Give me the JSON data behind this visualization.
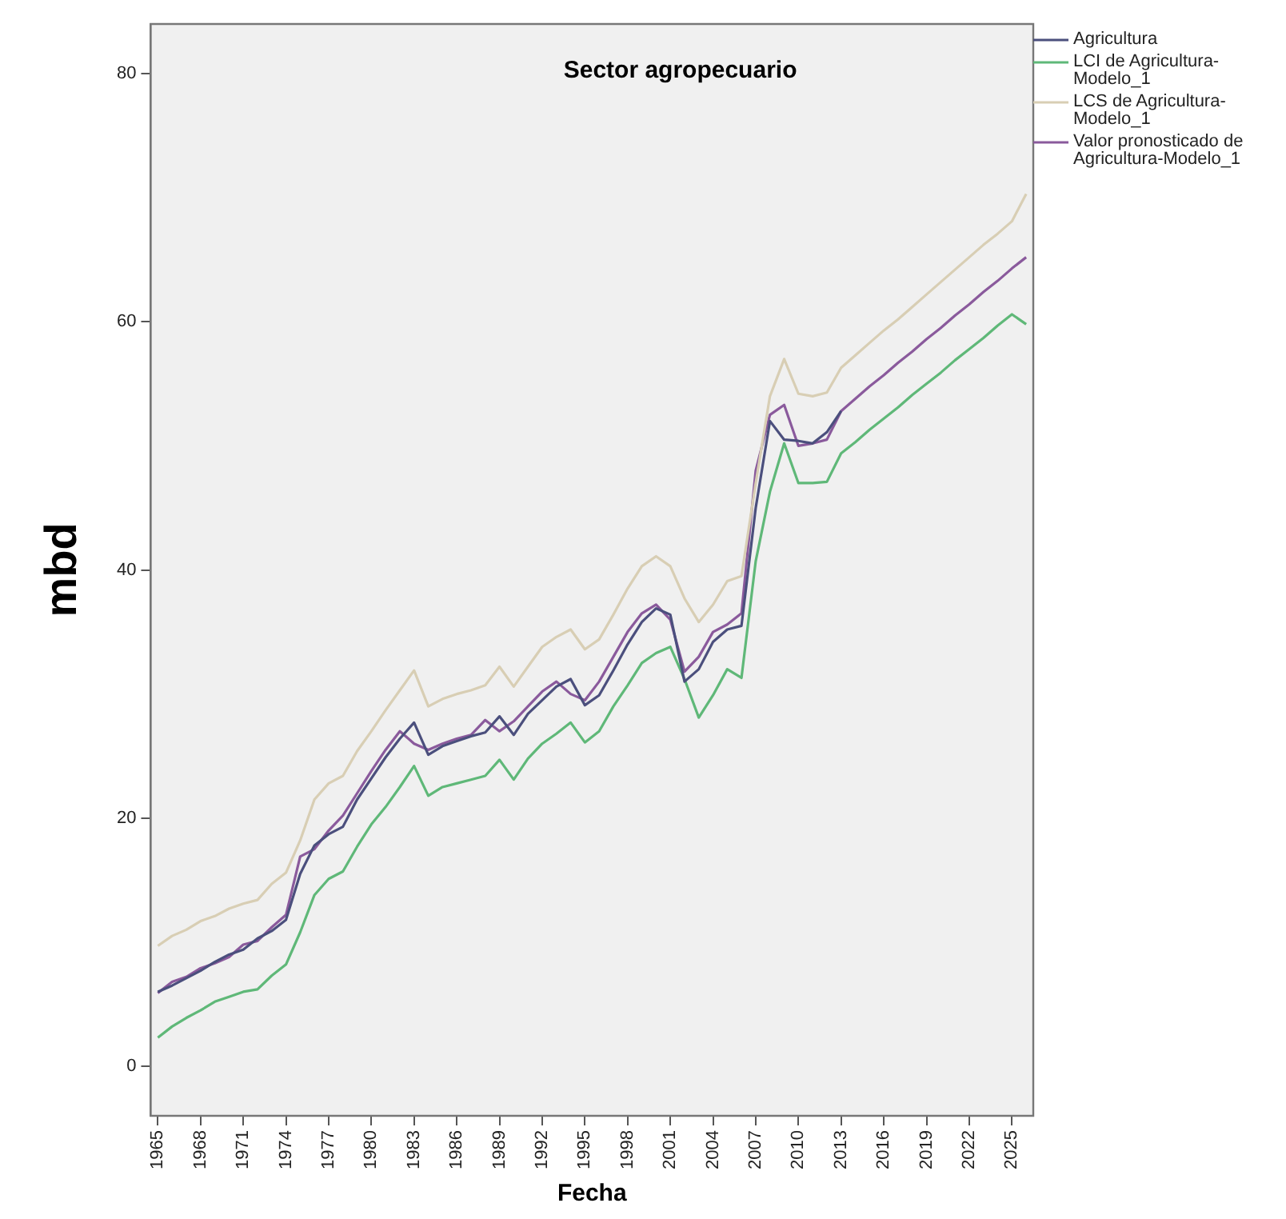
{
  "chart_data": {
    "type": "line",
    "title": "Sector agropecuario",
    "xlabel": "Fecha",
    "ylabel": "mbd",
    "categories": [
      "1965",
      null,
      null,
      "1968",
      null,
      null,
      "1971",
      null,
      null,
      "1974",
      null,
      null,
      "1977",
      null,
      null,
      "1980",
      null,
      null,
      "1983",
      null,
      null,
      "1986",
      null,
      null,
      "1989",
      null,
      null,
      "1992",
      null,
      null,
      "1995",
      null,
      null,
      "1998",
      null,
      null,
      "2001",
      null,
      null,
      "2004",
      null,
      null,
      "2007",
      null,
      null,
      "2010",
      null,
      null,
      "2013",
      null,
      null,
      "2016",
      null,
      null,
      "2019",
      null,
      null,
      "2022",
      null,
      null,
      "2025",
      null
    ],
    "ylim": [
      -4,
      84
    ],
    "yticks": [
      0,
      20,
      40,
      60,
      80
    ],
    "legend": "top right",
    "marker": "none",
    "line_style": "solid",
    "series": [
      {
        "name": "Agricultura",
        "color": "#4b4f7d",
        "values": [
          6.0,
          6.5,
          7.1,
          7.7,
          8.4,
          9.0,
          9.4,
          10.3,
          10.9,
          11.8,
          15.5,
          17.8,
          18.7,
          19.3,
          21.5,
          23.2,
          24.9,
          26.4,
          27.7,
          25.1,
          25.8,
          26.2,
          26.6,
          26.9,
          28.2,
          26.7,
          28.4,
          29.5,
          30.6,
          31.2,
          29.1,
          29.9,
          31.9,
          34.0,
          35.8,
          36.9,
          36.4,
          31.0,
          32.0,
          34.2,
          35.2,
          35.5,
          45.0,
          52.0,
          50.5,
          50.4,
          50.2,
          51.1,
          52.8,
          null,
          null,
          null,
          null,
          null,
          null,
          null,
          null,
          null,
          null,
          null,
          null,
          null
        ]
      },
      {
        "name": "LCI de Agricultura-Modelo_1",
        "color": "#5fb878",
        "values": [
          2.3,
          3.2,
          3.9,
          4.5,
          5.2,
          5.6,
          6.0,
          6.2,
          7.3,
          8.2,
          10.8,
          13.8,
          15.1,
          15.7,
          17.7,
          19.5,
          20.9,
          22.5,
          24.2,
          21.8,
          22.5,
          22.8,
          23.1,
          23.4,
          24.7,
          23.1,
          24.8,
          26.0,
          26.8,
          27.7,
          26.1,
          27.0,
          29.0,
          30.7,
          32.5,
          33.3,
          33.8,
          31.2,
          28.1,
          29.9,
          32.0,
          31.3,
          40.7,
          46.3,
          50.2,
          47.0,
          47.0,
          47.1,
          49.4,
          50.3,
          51.3,
          52.2,
          53.1,
          54.1,
          55.0,
          55.9,
          56.9,
          57.8,
          58.7,
          59.7,
          60.6,
          59.8
        ]
      },
      {
        "name": "LCS de Agricultura-Modelo_1",
        "color": "#d8ceb4",
        "values": [
          9.7,
          10.5,
          11.0,
          11.7,
          12.1,
          12.7,
          13.1,
          13.4,
          14.7,
          15.6,
          18.2,
          21.5,
          22.8,
          23.4,
          25.4,
          27.0,
          28.7,
          30.3,
          31.9,
          29.0,
          29.6,
          30.0,
          30.3,
          30.7,
          32.2,
          30.6,
          32.2,
          33.8,
          34.6,
          35.2,
          33.6,
          34.4,
          36.4,
          38.5,
          40.3,
          41.1,
          40.3,
          37.7,
          35.8,
          37.2,
          39.1,
          39.5,
          47.0,
          54.0,
          57.0,
          54.2,
          54.0,
          54.3,
          56.3,
          57.3,
          58.3,
          59.3,
          60.2,
          61.2,
          62.2,
          63.2,
          64.2,
          65.2,
          66.2,
          67.1,
          68.1,
          70.3
        ]
      },
      {
        "name": "Valor pronosticado de Agricultura-Modelo_1",
        "color": "#8a5a9c",
        "values": [
          5.9,
          6.8,
          7.2,
          7.9,
          8.3,
          8.8,
          9.8,
          10.1,
          11.2,
          12.2,
          16.9,
          17.5,
          19.0,
          20.2,
          22.0,
          23.8,
          25.5,
          27.0,
          26.0,
          25.5,
          26.0,
          26.4,
          26.7,
          27.9,
          27.0,
          27.8,
          29.0,
          30.2,
          31.0,
          30.0,
          29.5,
          31.0,
          33.0,
          35.0,
          36.5,
          37.2,
          36.0,
          31.8,
          33.0,
          35.0,
          35.6,
          36.5,
          48.0,
          52.5,
          53.3,
          50.0,
          50.2,
          50.5,
          52.8,
          53.8,
          54.8,
          55.7,
          56.7,
          57.6,
          58.6,
          59.5,
          60.5,
          61.4,
          62.4,
          63.3,
          64.3,
          65.2
        ]
      }
    ]
  }
}
